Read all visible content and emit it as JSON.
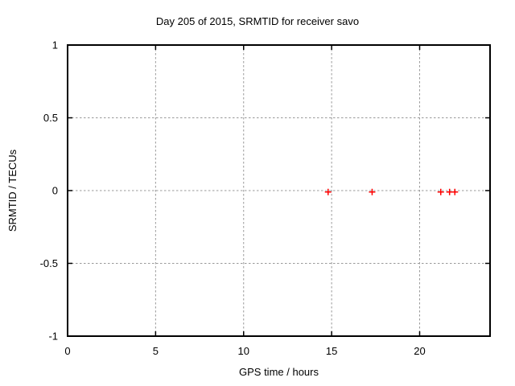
{
  "title": "Day 205 of 2015, SRMTID for receiver savo",
  "colors": {
    "background": "#ffffff",
    "foreground": "#000000",
    "grid": "#999999",
    "marker": "#ff0000"
  },
  "chart_data": {
    "type": "scatter",
    "title": "Day 205 of 2015, SRMTID for receiver savo",
    "xlabel": "GPS time / hours",
    "ylabel": "SRMTID / TECUs",
    "xlim": [
      0,
      24
    ],
    "ylim": [
      -1,
      1
    ],
    "xticks": [
      0,
      5,
      10,
      15,
      20
    ],
    "xtick_labels": [
      "0",
      "5",
      "10",
      "15",
      "20"
    ],
    "yticks": [
      -1,
      -0.5,
      0,
      0.5,
      1
    ],
    "ytick_labels": [
      "-1",
      "-0.5",
      "0",
      "0.5",
      "1"
    ],
    "grid": true,
    "legend": "none",
    "marker_style": "plus",
    "marker_color": "#ff0000",
    "series": [
      {
        "name": "SRMTID",
        "points": [
          {
            "x": 14.8,
            "y": -0.01
          },
          {
            "x": 17.3,
            "y": -0.01
          },
          {
            "x": 21.2,
            "y": -0.01
          },
          {
            "x": 21.7,
            "y": -0.01
          },
          {
            "x": 22.0,
            "y": -0.01
          }
        ]
      }
    ]
  }
}
